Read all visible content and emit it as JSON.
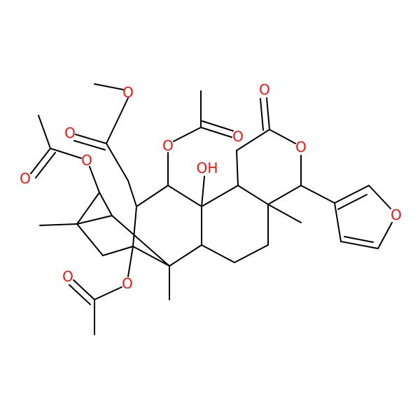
{
  "atoms": [
    {
      "label": "O"
    },
    {
      "label": "O"
    },
    {
      "label": "O"
    },
    {
      "label": "OH"
    },
    {
      "label": "O"
    },
    {
      "label": "O"
    },
    {
      "label": "O"
    },
    {
      "label": "O"
    },
    {
      "label": "O"
    },
    {
      "label": "O"
    },
    {
      "label": "O"
    },
    {
      "label": "O"
    }
  ]
}
